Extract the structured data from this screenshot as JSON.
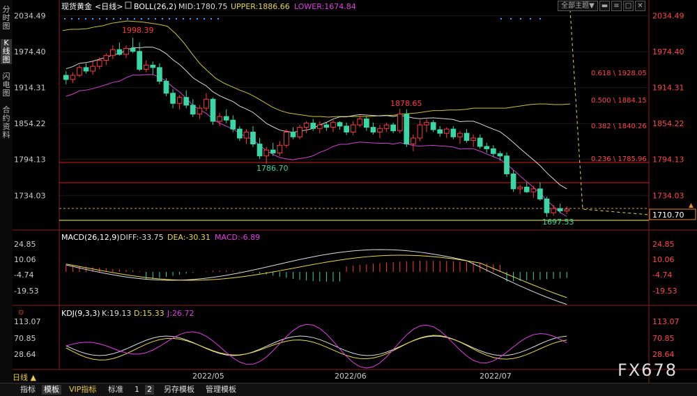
{
  "sidebar": {
    "tabs": [
      "分时图",
      "K线图",
      "闪电图",
      "合约资料"
    ]
  },
  "toolbar": {
    "theme_label": "全部主题",
    "theme_arrow": "▼"
  },
  "main_panel": {
    "symbol": "现货黄金",
    "period_tag": "<日线>",
    "boll_label": "BOLL(26,2)",
    "mid_label": "MID:1780.75",
    "upper_label": "UPPER:1886.66",
    "lower_label": "LOWER:1674.84",
    "price_ticks": [
      "2034.49",
      "1974.40",
      "1914.31",
      "1854.22",
      "1794.13",
      "1734.03"
    ],
    "current_price": "1710.70",
    "annotations": {
      "high": "1998.39",
      "mid_high": "1878.65",
      "mid_low": "1786.70",
      "low": "1697.53"
    },
    "fib_levels": [
      "0.618 \\ 1928.05",
      "0.500 \\ 1884.15",
      "0.382 \\ 1840.26",
      "0.236 \\ 1785.96"
    ],
    "colors": {
      "up": "#ff3b3b",
      "down": "#3ad6a6",
      "boll_upper": "#c8c23a",
      "boll_mid": "#d8d8d8",
      "boll_lower": "#cc44cc"
    }
  },
  "macd_panel": {
    "title": "MACD(26,12,9)",
    "diff": "DIFF:-33.75",
    "dea": "DEA:-30.31",
    "macd": "MACD:-6.89",
    "ticks": [
      "24.85",
      "10.06",
      "-4.74",
      "-19.53"
    ]
  },
  "kdj_panel": {
    "title": "KDJ(9,3,3)",
    "k": "K:19.13",
    "d": "D:15.33",
    "j": "J:26.72",
    "ticks": [
      "113.07",
      "70.85",
      "28.64"
    ]
  },
  "x_axis": {
    "labels": [
      "2022/05",
      "2022/06",
      "2022/07"
    ]
  },
  "bottom": {
    "period": "日线",
    "tabs": [
      "指标",
      "模板",
      "VIP指标",
      "标准",
      "1",
      "2",
      "另存模板",
      "管理模板"
    ]
  },
  "brand": "FX678",
  "chart_data": {
    "type": "candlestick",
    "ylim": [
      1690,
      2040
    ],
    "yticks": [
      2034.49,
      1974.4,
      1914.31,
      1854.22,
      1794.13,
      1734.03
    ],
    "ohlc": [
      [
        1935,
        1942,
        1920,
        1928
      ],
      [
        1928,
        1940,
        1922,
        1935
      ],
      [
        1935,
        1952,
        1932,
        1948
      ],
      [
        1948,
        1955,
        1938,
        1942
      ],
      [
        1942,
        1958,
        1936,
        1950
      ],
      [
        1950,
        1965,
        1945,
        1960
      ],
      [
        1960,
        1972,
        1952,
        1968
      ],
      [
        1968,
        1985,
        1962,
        1978
      ],
      [
        1978,
        1990,
        1968,
        1970
      ],
      [
        1970,
        1985,
        1964,
        1980
      ],
      [
        1980,
        1998,
        1972,
        1975
      ],
      [
        1975,
        1990,
        1942,
        1945
      ],
      [
        1945,
        1960,
        1940,
        1952
      ],
      [
        1952,
        1958,
        1936,
        1948
      ],
      [
        1948,
        1955,
        1920,
        1925
      ],
      [
        1925,
        1930,
        1900,
        1905
      ],
      [
        1905,
        1912,
        1880,
        1888
      ],
      [
        1888,
        1902,
        1878,
        1898
      ],
      [
        1898,
        1910,
        1880,
        1885
      ],
      [
        1885,
        1895,
        1865,
        1870
      ],
      [
        1870,
        1885,
        1862,
        1880
      ],
      [
        1880,
        1905,
        1875,
        1895
      ],
      [
        1895,
        1898,
        1852,
        1858
      ],
      [
        1858,
        1872,
        1850,
        1866
      ],
      [
        1866,
        1878,
        1855,
        1860
      ],
      [
        1860,
        1868,
        1840,
        1845
      ],
      [
        1845,
        1850,
        1825,
        1830
      ],
      [
        1830,
        1845,
        1820,
        1840
      ],
      [
        1840,
        1850,
        1815,
        1820
      ],
      [
        1820,
        1830,
        1795,
        1800
      ],
      [
        1800,
        1815,
        1787,
        1810
      ],
      [
        1810,
        1822,
        1800,
        1805
      ],
      [
        1805,
        1825,
        1800,
        1818
      ],
      [
        1818,
        1845,
        1814,
        1840
      ],
      [
        1840,
        1848,
        1828,
        1832
      ],
      [
        1832,
        1852,
        1828,
        1848
      ],
      [
        1848,
        1858,
        1838,
        1855
      ],
      [
        1855,
        1862,
        1842,
        1846
      ],
      [
        1846,
        1858,
        1838,
        1852
      ],
      [
        1852,
        1856,
        1842,
        1848
      ],
      [
        1848,
        1860,
        1840,
        1856
      ],
      [
        1856,
        1858,
        1844,
        1850
      ],
      [
        1850,
        1856,
        1835,
        1840
      ],
      [
        1840,
        1858,
        1835,
        1852
      ],
      [
        1852,
        1868,
        1848,
        1862
      ],
      [
        1862,
        1866,
        1842,
        1848
      ],
      [
        1848,
        1856,
        1836,
        1840
      ],
      [
        1840,
        1852,
        1830,
        1846
      ],
      [
        1846,
        1856,
        1840,
        1852
      ],
      [
        1852,
        1856,
        1838,
        1842
      ],
      [
        1842,
        1879,
        1838,
        1870
      ],
      [
        1870,
        1878,
        1815,
        1820
      ],
      [
        1820,
        1836,
        1808,
        1830
      ],
      [
        1830,
        1860,
        1825,
        1852
      ],
      [
        1852,
        1862,
        1840,
        1856
      ],
      [
        1856,
        1860,
        1840,
        1844
      ],
      [
        1844,
        1850,
        1832,
        1838
      ],
      [
        1838,
        1848,
        1830,
        1845
      ],
      [
        1845,
        1850,
        1828,
        1832
      ],
      [
        1832,
        1842,
        1820,
        1838
      ],
      [
        1838,
        1845,
        1822,
        1826
      ],
      [
        1826,
        1836,
        1815,
        1830
      ],
      [
        1830,
        1836,
        1812,
        1816
      ],
      [
        1816,
        1822,
        1805,
        1812
      ],
      [
        1812,
        1818,
        1798,
        1804
      ],
      [
        1804,
        1808,
        1792,
        1800
      ],
      [
        1800,
        1806,
        1765,
        1770
      ],
      [
        1770,
        1776,
        1740,
        1745
      ],
      [
        1745,
        1752,
        1736,
        1748
      ],
      [
        1748,
        1756,
        1738,
        1740
      ],
      [
        1740,
        1750,
        1730,
        1745
      ],
      [
        1745,
        1756,
        1725,
        1728
      ],
      [
        1728,
        1732,
        1698,
        1705
      ],
      [
        1705,
        1718,
        1700,
        1712
      ],
      [
        1712,
        1720,
        1704,
        1708
      ],
      [
        1708,
        1716,
        1703,
        1711
      ]
    ],
    "boll_upper": [
      2010,
      2012,
      2012,
      2013,
      2016,
      2018,
      2022,
      2024,
      2026,
      2025,
      2024,
      2022,
      2020,
      2017,
      2005,
      1990,
      1972,
      1955,
      1942,
      1930,
      1922,
      1916,
      1910,
      1905,
      1898,
      1890,
      1882,
      1876,
      1872,
      1870,
      1868,
      1866,
      1866,
      1865,
      1866,
      1866,
      1866,
      1866,
      1866,
      1867,
      1868,
      1868,
      1870,
      1871,
      1872,
      1874,
      1876,
      1876,
      1877,
      1877,
      1878,
      1880,
      1880,
      1880,
      1880,
      1880,
      1882,
      1884,
      1886,
      1887,
      1887,
      1886,
      1886,
      1887
    ]
  }
}
